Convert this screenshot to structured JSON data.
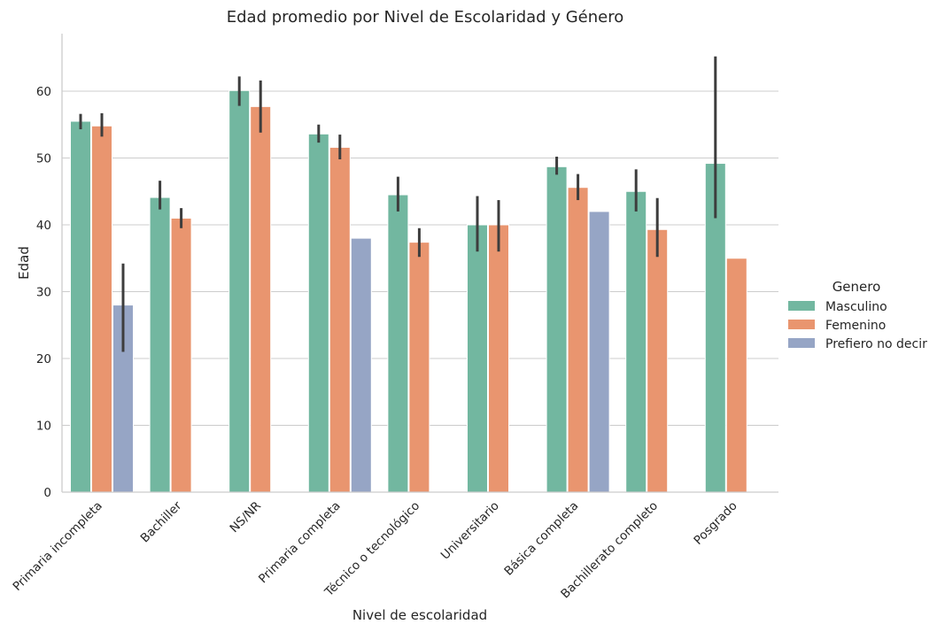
{
  "chart_data": {
    "type": "bar",
    "title": "Edad promedio por Nivel de Escolaridad y Género",
    "xlabel": "Nivel de escolaridad",
    "ylabel": "Edad",
    "ylim": [
      0,
      68
    ],
    "yticks": [
      0,
      10,
      20,
      30,
      40,
      50,
      60
    ],
    "grid": true,
    "legend": {
      "title": "Genero",
      "placement": "right"
    },
    "categories": [
      "Primaria incompleta",
      "Bachiller",
      "NS/NR",
      "Primaria completa",
      "Técnico o tecnológico",
      "Universitario",
      "Básica completa",
      "Bachillerato completo",
      "Posgrado"
    ],
    "series": [
      {
        "name": "Masculino",
        "color": "#72b7a0",
        "values": [
          55.5,
          44.1,
          60.1,
          53.6,
          44.5,
          40.0,
          48.7,
          45.0,
          49.2
        ],
        "err_low": [
          54.3,
          42.3,
          57.8,
          52.3,
          42.0,
          36.0,
          47.5,
          42.0,
          41.0
        ],
        "err_high": [
          56.6,
          46.6,
          62.2,
          55.0,
          47.2,
          44.3,
          50.2,
          48.3,
          65.2
        ]
      },
      {
        "name": "Femenino",
        "color": "#e9956f",
        "values": [
          54.8,
          41.0,
          57.7,
          51.6,
          37.4,
          40.0,
          45.6,
          39.3,
          35.0
        ],
        "err_low": [
          53.2,
          39.5,
          53.8,
          49.8,
          35.2,
          36.0,
          43.7,
          35.2,
          null
        ],
        "err_high": [
          56.7,
          42.5,
          61.6,
          53.5,
          39.5,
          43.7,
          47.6,
          44.0,
          null
        ]
      },
      {
        "name": "Prefiero no decir",
        "color": "#96a5c5",
        "values": [
          28.0,
          null,
          null,
          38.0,
          null,
          null,
          42.0,
          null,
          null
        ],
        "err_low": [
          21.0,
          null,
          null,
          null,
          null,
          null,
          null,
          null,
          null
        ],
        "err_high": [
          34.2,
          null,
          null,
          null,
          null,
          null,
          null,
          null,
          null
        ]
      }
    ]
  }
}
